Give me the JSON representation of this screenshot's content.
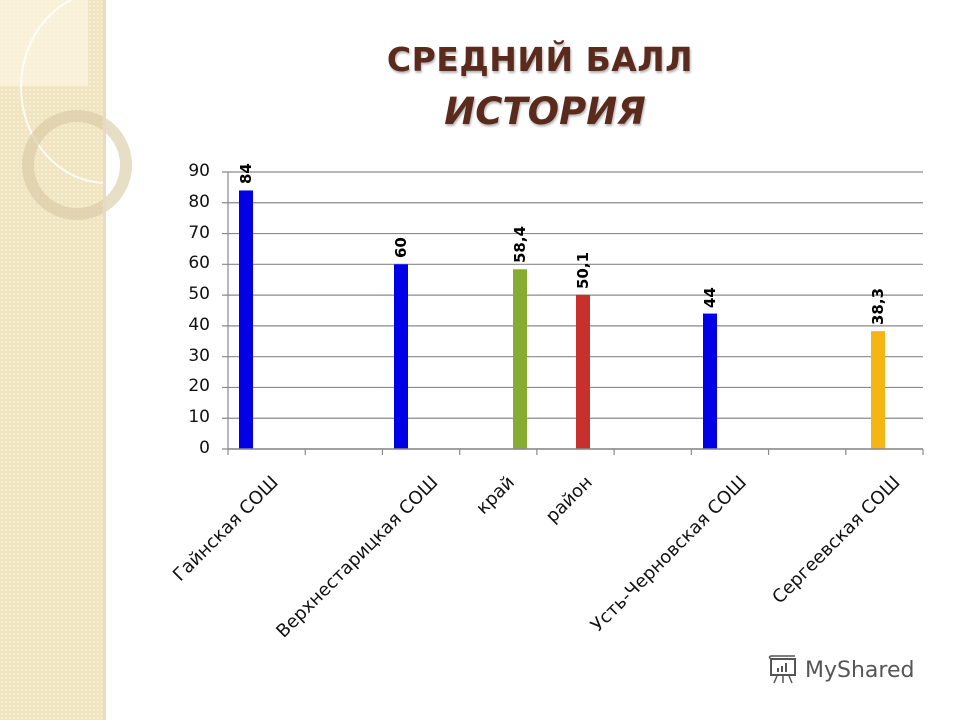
{
  "slide": {
    "title_line1": "СРЕДНИЙ БАЛЛ",
    "title_line2": "ИСТОРИЯ",
    "watermark": "MyShared"
  },
  "chart_data": {
    "type": "bar",
    "title": "СРЕДНИЙ БАЛЛ ИСТОРИЯ",
    "xlabel": "",
    "ylabel": "",
    "ylim": [
      0,
      90
    ],
    "yticks": [
      0,
      10,
      20,
      30,
      40,
      50,
      60,
      70,
      80,
      90
    ],
    "ytick_labels": [
      "0",
      "10",
      "20",
      "30",
      "40",
      "50",
      "60",
      "70",
      "80",
      "90"
    ],
    "grid": true,
    "legend": null,
    "categories": [
      "Гайнская СОШ",
      "Верхнестарицкая СОШ",
      "край",
      "район",
      "Усть-Черновская СОШ",
      "Сергеевская СОШ"
    ],
    "values": [
      84,
      60,
      58.4,
      50.1,
      44,
      38.3
    ],
    "value_labels": [
      "84",
      "60",
      "58,4",
      "50,1",
      "44",
      "38,3"
    ],
    "colors": [
      "#0000e6",
      "#0000e6",
      "#86ad32",
      "#c8302e",
      "#0000e6",
      "#f5b614"
    ]
  }
}
